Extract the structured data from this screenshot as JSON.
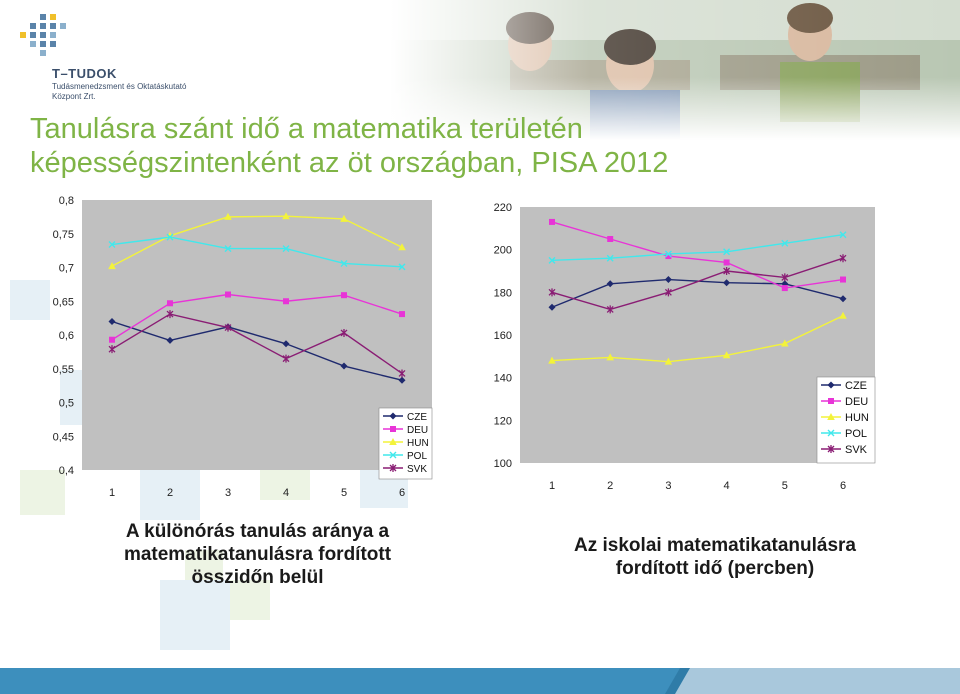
{
  "header": {
    "org_name": "T–TUDOK",
    "org_subtitle_line1": "Tudásmenedzsment és Oktatáskutató",
    "org_subtitle_line2": "Központ Zrt.",
    "title_line1": "Tanulásra szánt idő a matematika területén",
    "title_line2": "képességszintenként az öt országban, PISA 2012"
  },
  "captions": {
    "left_line1": "A különórás tanulás aránya a",
    "left_line2": "matematikatanulásra fordított",
    "left_line3": "összidőn belül",
    "right_line1": "Az iskolai matematikatanulásra",
    "right_line2": "fordított idő (percben)"
  },
  "colors": {
    "title": "#7fb446",
    "CZE": "#1f2a6e",
    "DEU": "#e834d7",
    "HUN": "#f3f33a",
    "POL": "#41e8ec",
    "SVK": "#8a1d74",
    "plot_bg": "#c0c0c0"
  },
  "chart_data": [
    {
      "type": "line",
      "categories": [
        "1",
        "2",
        "3",
        "4",
        "5",
        "6"
      ],
      "ylim": [
        0.4,
        0.8
      ],
      "yticks": [
        "0,4",
        "0,45",
        "0,5",
        "0,55",
        "0,6",
        "0,65",
        "0,7",
        "0,75",
        "0,8"
      ],
      "legend_position": "bottom-right",
      "grid": false,
      "series": [
        {
          "name": "CZE",
          "values": [
            0.62,
            0.592,
            0.612,
            0.587,
            0.554,
            0.533
          ]
        },
        {
          "name": "DEU",
          "values": [
            0.593,
            0.647,
            0.66,
            0.65,
            0.659,
            0.631
          ]
        },
        {
          "name": "HUN",
          "values": [
            0.702,
            0.747,
            0.775,
            0.776,
            0.772,
            0.73
          ]
        },
        {
          "name": "POL",
          "values": [
            0.734,
            0.745,
            0.728,
            0.728,
            0.706,
            0.701
          ]
        },
        {
          "name": "SVK",
          "values": [
            0.579,
            0.631,
            0.611,
            0.565,
            0.603,
            0.543
          ]
        }
      ]
    },
    {
      "type": "line",
      "categories": [
        "1",
        "2",
        "3",
        "4",
        "5",
        "6"
      ],
      "ylim": [
        100,
        220
      ],
      "yticks": [
        "100",
        "120",
        "140",
        "160",
        "180",
        "200",
        "220"
      ],
      "legend_position": "bottom-right",
      "grid": false,
      "series": [
        {
          "name": "CZE",
          "values": [
            173,
            184,
            186,
            184.5,
            184,
            177
          ]
        },
        {
          "name": "DEU",
          "values": [
            213,
            205,
            197,
            194,
            182,
            186
          ]
        },
        {
          "name": "HUN",
          "values": [
            148,
            149.5,
            147.5,
            150.5,
            156,
            169
          ]
        },
        {
          "name": "POL",
          "values": [
            195,
            196,
            198,
            199,
            203,
            207
          ]
        },
        {
          "name": "SVK",
          "values": [
            180,
            172,
            180,
            190,
            187,
            196
          ]
        }
      ]
    }
  ]
}
